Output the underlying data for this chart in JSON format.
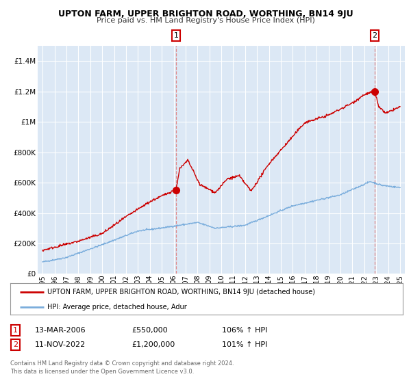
{
  "title": "UPTON FARM, UPPER BRIGHTON ROAD, WORTHING, BN14 9JU",
  "subtitle": "Price paid vs. HM Land Registry's House Price Index (HPI)",
  "legend_line1": "UPTON FARM, UPPER BRIGHTON ROAD, WORTHING, BN14 9JU (detached house)",
  "legend_line2": "HPI: Average price, detached house, Adur",
  "annotation1_label": "1",
  "annotation1_date": "13-MAR-2006",
  "annotation1_price": "£550,000",
  "annotation1_hpi": "106% ↑ HPI",
  "annotation2_label": "2",
  "annotation2_date": "11-NOV-2022",
  "annotation2_price": "£1,200,000",
  "annotation2_hpi": "101% ↑ HPI",
  "footnote1": "Contains HM Land Registry data © Crown copyright and database right 2024.",
  "footnote2": "This data is licensed under the Open Government Licence v3.0.",
  "red_color": "#cc0000",
  "blue_color": "#7aaddc",
  "annotation_box_color": "#cc0000",
  "fig_bg_color": "#f5f5f5",
  "plot_bg_color": "#dce8f5",
  "grid_color": "#ffffff",
  "ylim": [
    0,
    1500000
  ],
  "yticks": [
    0,
    200000,
    400000,
    600000,
    800000,
    1000000,
    1200000,
    1400000
  ],
  "ytick_labels": [
    "£0",
    "£200K",
    "£400K",
    "£600K",
    "£800K",
    "£1M",
    "£1.2M",
    "£1.4M"
  ],
  "xlim_start": 1994.6,
  "xlim_end": 2025.4,
  "marker1_x": 2006.2,
  "marker1_y": 550000,
  "marker2_x": 2022.87,
  "marker2_y": 1200000,
  "vline1_x": 2006.2,
  "vline2_x": 2022.87,
  "xtick_years": [
    1995,
    1996,
    1997,
    1998,
    1999,
    2000,
    2001,
    2002,
    2003,
    2004,
    2005,
    2006,
    2007,
    2008,
    2009,
    2010,
    2011,
    2012,
    2013,
    2014,
    2015,
    2016,
    2017,
    2018,
    2019,
    2020,
    2021,
    2022,
    2023,
    2024,
    2025
  ]
}
